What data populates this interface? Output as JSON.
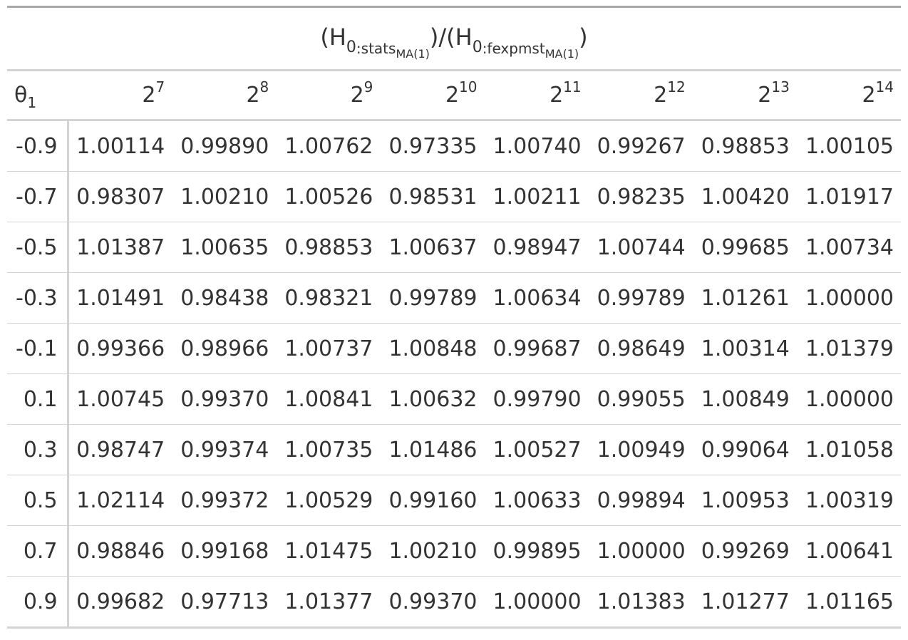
{
  "title": {
    "open1": "(H",
    "h_sub1": "0",
    "stat1": ":stats",
    "stat1_sub": "MA(1)",
    "mid": ")/(H",
    "h_sub2": "0",
    "stat2": ":fexpmst",
    "stat2_sub": "MA(1)",
    "close": ")"
  },
  "stub_header": {
    "symbol": "θ",
    "subscript": "1"
  },
  "columns": [
    {
      "base": "2",
      "exp": "7"
    },
    {
      "base": "2",
      "exp": "8"
    },
    {
      "base": "2",
      "exp": "9"
    },
    {
      "base": "2",
      "exp": "10"
    },
    {
      "base": "2",
      "exp": "11"
    },
    {
      "base": "2",
      "exp": "12"
    },
    {
      "base": "2",
      "exp": "13"
    },
    {
      "base": "2",
      "exp": "14"
    }
  ],
  "rows": [
    {
      "theta": "-0.9",
      "values": [
        "1.00114",
        "0.99890",
        "1.00762",
        "0.97335",
        "1.00740",
        "0.99267",
        "0.98853",
        "1.00105"
      ]
    },
    {
      "theta": "-0.7",
      "values": [
        "0.98307",
        "1.00210",
        "1.00526",
        "0.98531",
        "1.00211",
        "0.98235",
        "1.00420",
        "1.01917"
      ]
    },
    {
      "theta": "-0.5",
      "values": [
        "1.01387",
        "1.00635",
        "0.98853",
        "1.00637",
        "0.98947",
        "1.00744",
        "0.99685",
        "1.00734"
      ]
    },
    {
      "theta": "-0.3",
      "values": [
        "1.01491",
        "0.98438",
        "0.98321",
        "0.99789",
        "1.00634",
        "0.99789",
        "1.01261",
        "1.00000"
      ]
    },
    {
      "theta": "-0.1",
      "values": [
        "0.99366",
        "0.98966",
        "1.00737",
        "1.00848",
        "0.99687",
        "0.98649",
        "1.00314",
        "1.01379"
      ]
    },
    {
      "theta": "0.1",
      "values": [
        "1.00745",
        "0.99370",
        "1.00841",
        "1.00632",
        "0.99790",
        "0.99055",
        "1.00849",
        "1.00000"
      ]
    },
    {
      "theta": "0.3",
      "values": [
        "0.98747",
        "0.99374",
        "1.00735",
        "1.01486",
        "1.00527",
        "1.00949",
        "0.99064",
        "1.01058"
      ]
    },
    {
      "theta": "0.5",
      "values": [
        "1.02114",
        "0.99372",
        "1.00529",
        "0.99160",
        "1.00633",
        "0.99894",
        "1.00953",
        "1.00319"
      ]
    },
    {
      "theta": "0.7",
      "values": [
        "0.98846",
        "0.99168",
        "1.01475",
        "1.00210",
        "0.99895",
        "1.00000",
        "0.99269",
        "1.00641"
      ]
    },
    {
      "theta": "0.9",
      "values": [
        "0.99682",
        "0.97713",
        "1.01377",
        "0.99370",
        "1.00000",
        "1.01383",
        "1.01277",
        "1.01165"
      ]
    }
  ],
  "colors": {
    "text": "#333333",
    "rule_dark": "#a8a8a8",
    "rule_light": "#d3d3d3"
  }
}
